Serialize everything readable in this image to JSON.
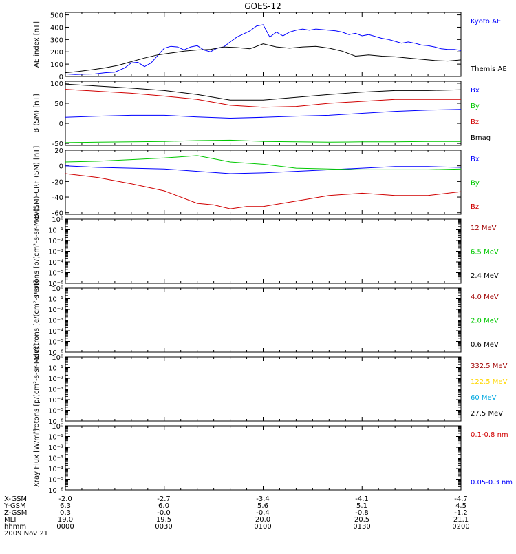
{
  "title": "GOES-12",
  "date": "2009 Nov 21",
  "colors": {
    "black": "#000000",
    "blue": "#0000ff",
    "green": "#00c800",
    "red": "#d00000",
    "darkred": "#a00000",
    "gold": "#ffd700",
    "cyan": "#00a8e0"
  },
  "orbit": {
    "rows": [
      {
        "label": "X-GSM",
        "values": [
          "-2.0",
          "-2.7",
          "-3.4",
          "-4.1",
          "-4.7"
        ]
      },
      {
        "label": "Y-GSM",
        "values": [
          "6.3",
          "6.0",
          "5.6",
          "5.1",
          "4.5"
        ]
      },
      {
        "label": "Z-GSM",
        "values": [
          "0.3",
          "-0.0",
          "-0.4",
          "-0.8",
          "-1.2"
        ]
      },
      {
        "label": "MLT",
        "values": [
          "19.0",
          "19.5",
          "20.0",
          "20.5",
          "21.1"
        ]
      },
      {
        "label": "hhmm",
        "values": [
          "0000",
          "0030",
          "0100",
          "0130",
          "0200"
        ]
      }
    ]
  },
  "chart_data": [
    {
      "type": "line",
      "ylabel": "AE index [nT]",
      "ylim": [
        0,
        520
      ],
      "yticks": [
        "500",
        "400",
        "300",
        "200",
        "100",
        "0"
      ],
      "ytick_values": [
        500,
        400,
        300,
        200,
        100,
        0
      ],
      "xlim": [
        0,
        120
      ],
      "series": [
        {
          "name": "Kyoto AE",
          "color": "#0000ff",
          "x": [
            0,
            3,
            6,
            9,
            12,
            15,
            18,
            20,
            22,
            24,
            26,
            28,
            30,
            32,
            34,
            36,
            38,
            40,
            42,
            44,
            46,
            48,
            50,
            52,
            54,
            56,
            58,
            60,
            62,
            64,
            66,
            68,
            70,
            72,
            74,
            76,
            78,
            80,
            82,
            84,
            86,
            88,
            90,
            92,
            94,
            96,
            98,
            100,
            102,
            104,
            106,
            108,
            110,
            112,
            114,
            116,
            118,
            120
          ],
          "y": [
            20,
            15,
            18,
            20,
            30,
            35,
            70,
            110,
            115,
            80,
            110,
            170,
            230,
            245,
            240,
            215,
            240,
            250,
            215,
            200,
            230,
            240,
            280,
            320,
            345,
            370,
            410,
            420,
            320,
            360,
            330,
            360,
            375,
            385,
            375,
            385,
            380,
            375,
            370,
            360,
            340,
            350,
            330,
            340,
            325,
            310,
            300,
            285,
            270,
            280,
            270,
            255,
            250,
            240,
            225,
            220,
            220,
            210
          ]
        },
        {
          "name": "Themis AE",
          "color": "#000000",
          "x": [
            0,
            4,
            8,
            12,
            16,
            20,
            24,
            28,
            32,
            36,
            40,
            44,
            48,
            52,
            56,
            60,
            64,
            68,
            72,
            76,
            80,
            84,
            88,
            92,
            96,
            100,
            104,
            108,
            112,
            116,
            120
          ],
          "y": [
            30,
            40,
            55,
            70,
            90,
            120,
            150,
            175,
            190,
            205,
            215,
            220,
            240,
            235,
            225,
            265,
            240,
            230,
            240,
            245,
            230,
            205,
            165,
            175,
            165,
            160,
            150,
            140,
            130,
            125,
            135
          ]
        }
      ]
    },
    {
      "type": "line",
      "ylabel": "B (SM) [nT]",
      "ylim": [
        -55,
        105
      ],
      "yticks": [
        "100",
        "50",
        "0",
        "-50"
      ],
      "ytick_values": [
        100,
        50,
        0,
        -50
      ],
      "xlim": [
        0,
        120
      ],
      "series": [
        {
          "name": "Bx",
          "color": "#0000ff",
          "x": [
            0,
            10,
            20,
            30,
            40,
            50,
            60,
            70,
            80,
            90,
            100,
            110,
            120
          ],
          "y": [
            15,
            18,
            20,
            20,
            16,
            13,
            15,
            18,
            20,
            25,
            30,
            33,
            35
          ]
        },
        {
          "name": "By",
          "color": "#00c800",
          "x": [
            0,
            10,
            20,
            30,
            40,
            50,
            60,
            70,
            80,
            90,
            100,
            110,
            120
          ],
          "y": [
            -48,
            -47,
            -46,
            -45,
            -43,
            -42,
            -45,
            -46,
            -47,
            -46,
            -46,
            -45,
            -45
          ]
        },
        {
          "name": "Bz",
          "color": "#d00000",
          "x": [
            0,
            10,
            20,
            30,
            40,
            50,
            60,
            70,
            80,
            90,
            100,
            110,
            120
          ],
          "y": [
            85,
            80,
            75,
            68,
            60,
            45,
            40,
            42,
            50,
            55,
            60,
            60,
            60
          ]
        },
        {
          "name": "Bmag",
          "color": "#000000",
          "x": [
            0,
            10,
            20,
            30,
            40,
            50,
            60,
            70,
            80,
            90,
            100,
            110,
            120
          ],
          "y": [
            98,
            93,
            88,
            82,
            72,
            58,
            58,
            65,
            72,
            78,
            82,
            82,
            84
          ]
        }
      ]
    },
    {
      "type": "line",
      "ylabel": "B (SM)-CRF (SM) [nT]",
      "ylim": [
        -62,
        20
      ],
      "yticks": [
        "20",
        "0",
        "-20",
        "-40",
        "-60"
      ],
      "ytick_values": [
        20,
        0,
        -20,
        -40,
        -60
      ],
      "xlim": [
        0,
        120
      ],
      "series": [
        {
          "name": "Bx",
          "color": "#0000ff",
          "x": [
            0,
            10,
            20,
            30,
            40,
            50,
            60,
            70,
            80,
            90,
            100,
            110,
            120
          ],
          "y": [
            0,
            -2,
            -3,
            -4,
            -7,
            -10,
            -9,
            -7,
            -5,
            -3,
            -1,
            -1,
            -2
          ]
        },
        {
          "name": "By",
          "color": "#00c800",
          "x": [
            0,
            10,
            20,
            30,
            40,
            50,
            60,
            70,
            80,
            90,
            100,
            110,
            120
          ],
          "y": [
            5,
            6,
            8,
            10,
            13,
            5,
            2,
            -3,
            -4,
            -5,
            -5,
            -5,
            -4
          ]
        },
        {
          "name": "Bz",
          "color": "#d00000",
          "x": [
            0,
            10,
            20,
            30,
            40,
            45,
            50,
            55,
            60,
            70,
            80,
            90,
            100,
            110,
            120
          ],
          "y": [
            -10,
            -15,
            -23,
            -32,
            -48,
            -50,
            -55,
            -52,
            -52,
            -45,
            -38,
            -35,
            -38,
            -38,
            -33
          ]
        }
      ]
    },
    {
      "type": "line",
      "ylabel": "Protons [p/(cm²-s-sr-MeV)]",
      "scale": "log",
      "ylim": [
        1e-06,
        1
      ],
      "yticks": [
        "10⁰",
        "10⁻¹",
        "10⁻²",
        "10⁻³",
        "10⁻⁴",
        "10⁻⁵",
        "10⁻⁶"
      ],
      "series": [
        {
          "name": "12 MeV",
          "color": "#a00000",
          "values": []
        },
        {
          "name": "6.5 MeV",
          "color": "#00c800",
          "values": []
        },
        {
          "name": "2.4 MeV",
          "color": "#000000",
          "values": []
        }
      ]
    },
    {
      "type": "line",
      "ylabel": "Electrons [e/(cm²-s-sr)]",
      "scale": "log",
      "ylim": [
        1e-06,
        1
      ],
      "yticks": [
        "10⁰",
        "10⁻¹",
        "10⁻²",
        "10⁻³",
        "10⁻⁴",
        "10⁻⁵",
        "10⁻⁶"
      ],
      "series": [
        {
          "name": "4.0 MeV",
          "color": "#a00000",
          "values": []
        },
        {
          "name": "2.0 MeV",
          "color": "#00c800",
          "values": []
        },
        {
          "name": "0.6 MeV",
          "color": "#000000",
          "values": []
        }
      ]
    },
    {
      "type": "line",
      "ylabel": "Protons [p/(cm²-s-sr-MeV)]",
      "scale": "log",
      "ylim": [
        1e-06,
        1
      ],
      "yticks": [
        "10⁰",
        "10⁻¹",
        "10⁻²",
        "10⁻³",
        "10⁻⁴",
        "10⁻⁵",
        "10⁻⁶"
      ],
      "series": [
        {
          "name": "332.5 MeV",
          "color": "#a00000",
          "values": []
        },
        {
          "name": "122.5 MeV",
          "color": "#ffd700",
          "values": []
        },
        {
          "name": "60 MeV",
          "color": "#00a8e0",
          "values": []
        },
        {
          "name": "27.5 MeV",
          "color": "#000000",
          "values": []
        }
      ]
    },
    {
      "type": "line",
      "ylabel": "Xray Flux [W/m²]",
      "scale": "log",
      "ylim": [
        1e-06,
        1
      ],
      "yticks": [
        "10⁰",
        "10⁻¹",
        "10⁻²",
        "10⁻³",
        "10⁻⁴",
        "10⁻⁵",
        "10⁻⁶"
      ],
      "series": [
        {
          "name": "0.1-0.8 nm",
          "color": "#d00000",
          "values": []
        },
        {
          "name": "0.05-0.3 nm",
          "color": "#0000ff",
          "values": []
        }
      ]
    }
  ]
}
